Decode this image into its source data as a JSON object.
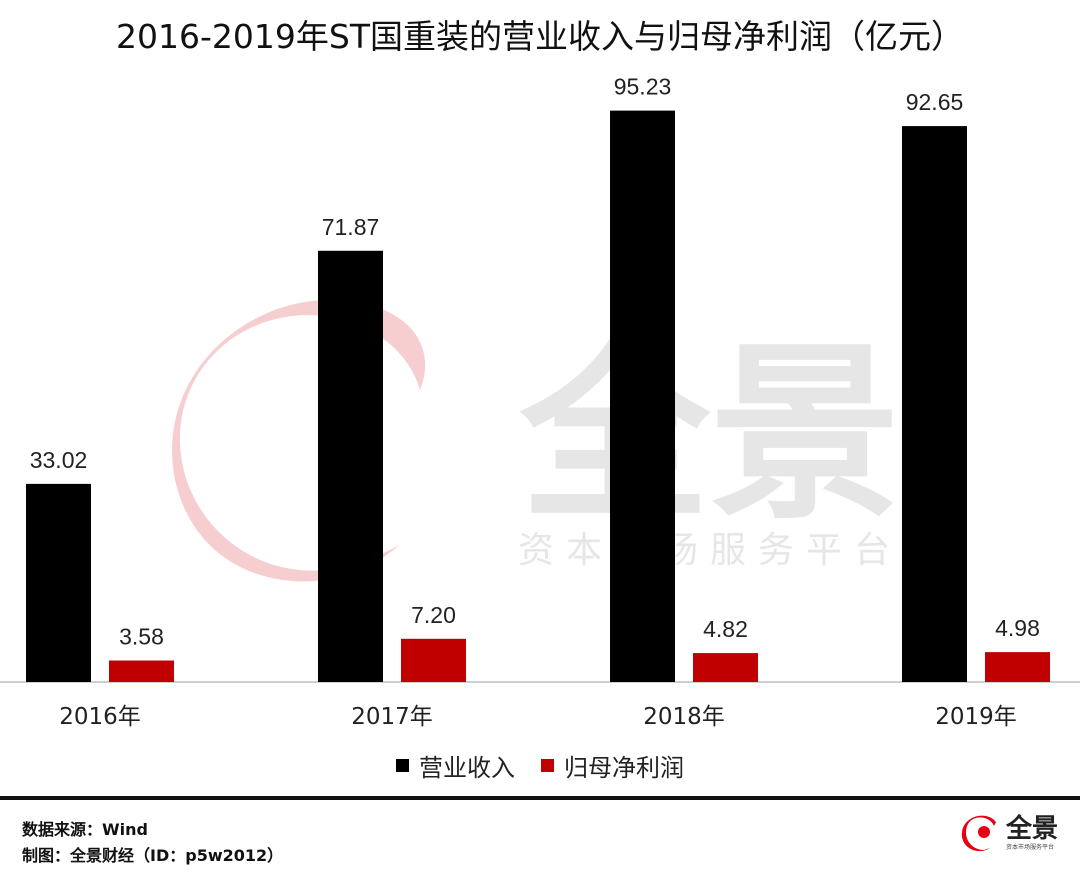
{
  "chart_data": {
    "type": "bar",
    "title": "2016-2019年ST国重装的营业收入与归母净利润（亿元）",
    "categories": [
      "2016年",
      "2017年",
      "2018年",
      "2019年"
    ],
    "series": [
      {
        "name": "营业收入",
        "values": [
          33.02,
          71.87,
          95.23,
          92.65
        ],
        "color": "#000000"
      },
      {
        "name": "归母净利润",
        "values": [
          3.58,
          7.2,
          4.82,
          4.98
        ],
        "color": "#c00000"
      }
    ],
    "value_labels": [
      [
        "33.02",
        "71.87",
        "95.23",
        "92.65"
      ],
      [
        "3.58",
        "7.20",
        "4.82",
        "4.98"
      ]
    ],
    "xlabel": "",
    "ylabel": "",
    "ylim": [
      0,
      100
    ],
    "grid": false,
    "legend": "bottom"
  },
  "footer": {
    "source": "数据来源：Wind",
    "made_by": "制图：全景财经（ID：p5w2012）"
  },
  "watermark": {
    "brand": "全景",
    "tagline": "资本市场服务平台"
  },
  "logo": {
    "brand": "全景",
    "tagline": "资本市场服务平台"
  }
}
